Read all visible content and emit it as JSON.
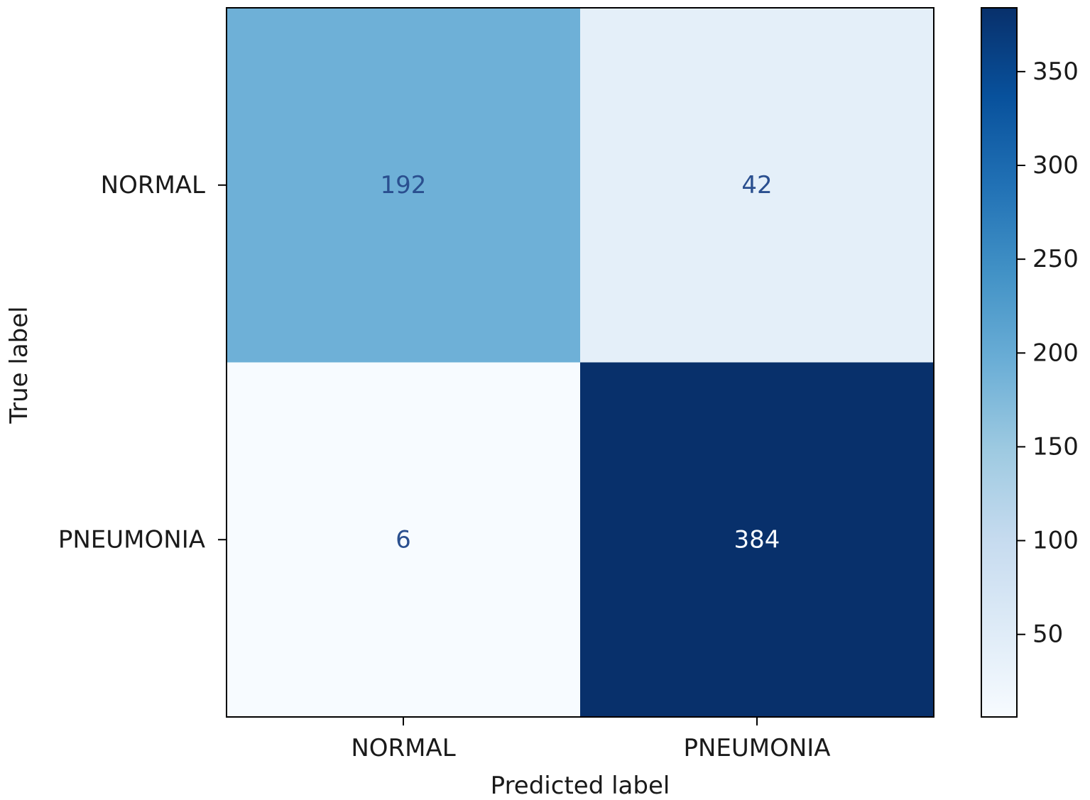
{
  "chart_data": {
    "type": "heatmap",
    "title": "",
    "xlabel": "Predicted label",
    "ylabel": "True label",
    "x_categories": [
      "NORMAL",
      "PNEUMONIA"
    ],
    "y_categories": [
      "NORMAL",
      "PNEUMONIA"
    ],
    "values": [
      [
        192,
        42
      ],
      [
        6,
        384
      ]
    ],
    "colormap": "Blues",
    "colorbar": {
      "range": [
        6,
        384
      ],
      "ticks": [
        50,
        100,
        150,
        200,
        250,
        300,
        350
      ]
    },
    "grid": false
  }
}
